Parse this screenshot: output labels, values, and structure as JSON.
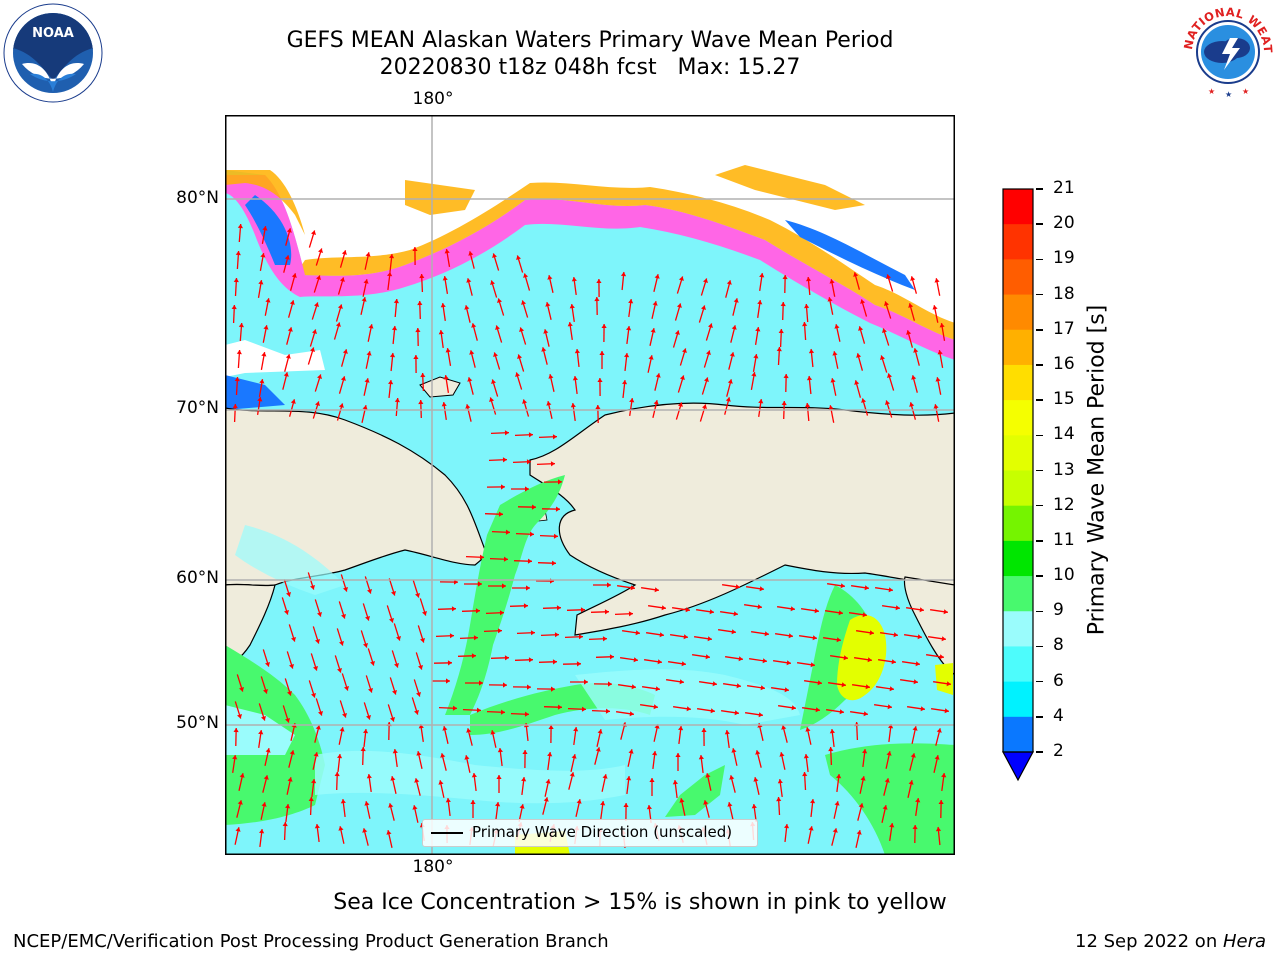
{
  "title_line1": "GEFS MEAN Alaskan Waters Primary Wave Mean Period",
  "title_line2": "20220830 t18z 048h fcst   Max: 15.27",
  "logos": {
    "left_icon": "noaa-logo-icon",
    "left_text": "NOAA",
    "right_icon": "nws-logo-icon",
    "right_text": "NATIONAL WEATHER SERVICE"
  },
  "map": {
    "lon_label_top": "180°",
    "lon_label_bottom": "180°",
    "lat_labels": [
      "80°N",
      "70°N",
      "60°N",
      "50°N"
    ],
    "colors": {
      "land": "#efecdc",
      "ocean": "#7ef5fb",
      "arrows": "#ff0000",
      "gridlines": "#b0b0b0",
      "coastline": "#000000"
    }
  },
  "legend_text": "Primary Wave Direction (unscaled)",
  "colorbar": {
    "label": "Primary Wave Mean Period [s]",
    "ticks": [
      "21",
      "20",
      "19",
      "18",
      "17",
      "16",
      "15",
      "14",
      "13",
      "12",
      "11",
      "10",
      "9",
      "8",
      "6",
      "4",
      "2"
    ],
    "colors": [
      "#ff0000",
      "#ff3300",
      "#ff5d00",
      "#ff8a00",
      "#ffb000",
      "#ffde00",
      "#f5ff00",
      "#e3ff00",
      "#c7ff00",
      "#75f400",
      "#00e600",
      "#48f96e",
      "#9afcfc",
      "#4dfcfc",
      "#00f2ff",
      "#0a78ff",
      "#0000ff"
    ]
  },
  "note": "Sea Ice Concentration > 15% is shown in pink to yellow",
  "footer_left": "NCEP/EMC/Verification Post Processing Product Generation Branch",
  "footer_right_prefix": "12 Sep 2022 on ",
  "footer_right_host": "Hera"
}
